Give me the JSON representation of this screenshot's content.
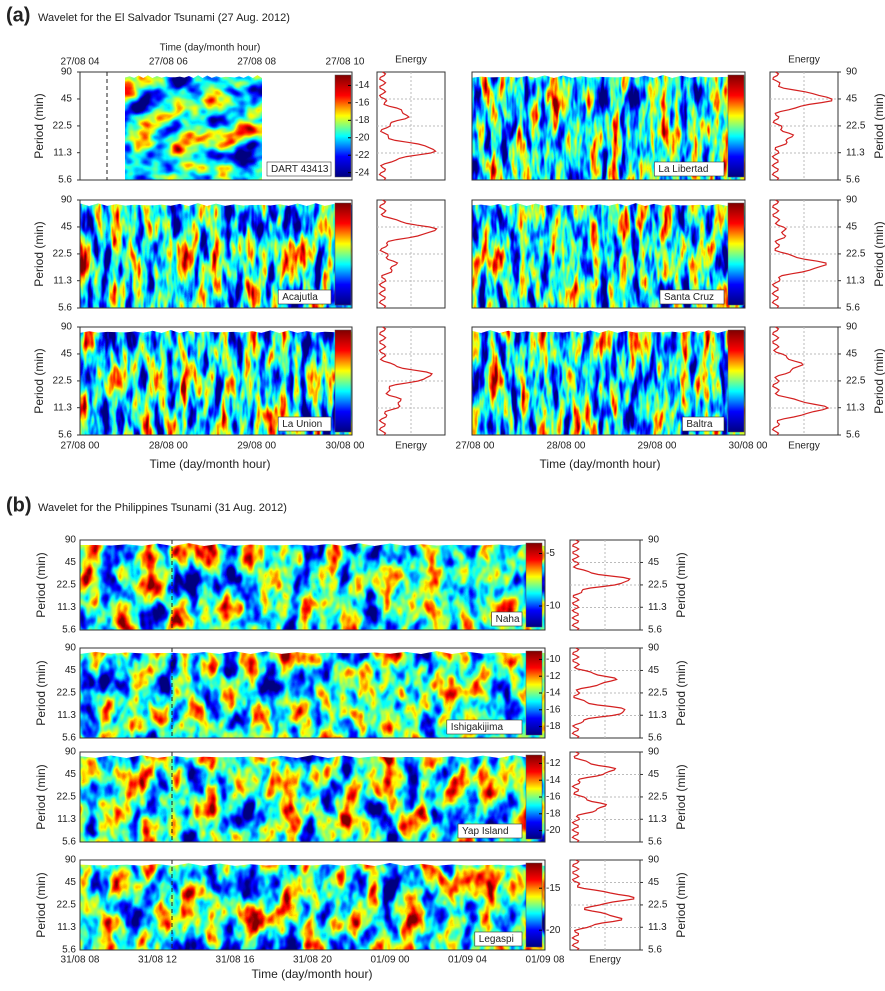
{
  "period_axis": {
    "label": "Period (min)",
    "lim": [
      5.6,
      90
    ],
    "ticks": [
      90,
      45,
      22.5,
      11.3,
      5.6
    ]
  },
  "panel_a": {
    "label": "(a)",
    "title": "Wavelet for the El Salvador Tsunami (27 Aug. 2012)",
    "top_time_axis": {
      "label": "Time (day/month hour)",
      "ticks": [
        "27/08 04",
        "27/08 06",
        "27/08 08",
        "27/08 10"
      ]
    },
    "time_axis": {
      "label": "Time (day/month hour)",
      "ticks": [
        "27/08 00",
        "28/08 00",
        "29/08 00",
        "30/08 00"
      ]
    },
    "energy_label": "Energy",
    "stations": [
      {
        "name": "DART 43413",
        "colorbar_lim": [
          -24.5,
          -12.8
        ],
        "colorbar_ticks": [
          -14,
          -16,
          -18,
          -20,
          -22,
          -24
        ]
      },
      {
        "name": "La Libertad"
      },
      {
        "name": "Acajutla"
      },
      {
        "name": "Santa Cruz"
      },
      {
        "name": "La Union"
      },
      {
        "name": "Baltra"
      }
    ]
  },
  "panel_b": {
    "label": "(b)",
    "title": "Wavelet for the Philippines Tsunami (31 Aug. 2012)",
    "time_axis": {
      "label": "Time (day/month hour)",
      "ticks": [
        "31/08 08",
        "31/08 12",
        "31/08 16",
        "31/08 20",
        "01/09 00",
        "01/09 04",
        "01/09 08"
      ]
    },
    "energy_label": "Energy",
    "stations": [
      {
        "name": "Naha",
        "colorbar_lim": [
          -12,
          -4
        ],
        "colorbar_ticks": [
          -5,
          -10
        ]
      },
      {
        "name": "Ishigakijima",
        "colorbar_lim": [
          -19,
          -9
        ],
        "colorbar_ticks": [
          -10,
          -12,
          -14,
          -16,
          -18
        ]
      },
      {
        "name": "Yap Island",
        "colorbar_lim": [
          -21,
          -11
        ],
        "colorbar_ticks": [
          -12,
          -14,
          -16,
          -18,
          -20
        ]
      },
      {
        "name": "Legaspi",
        "colorbar_lim": [
          -22,
          -12
        ],
        "colorbar_ticks": [
          -15,
          -20
        ]
      }
    ]
  }
}
